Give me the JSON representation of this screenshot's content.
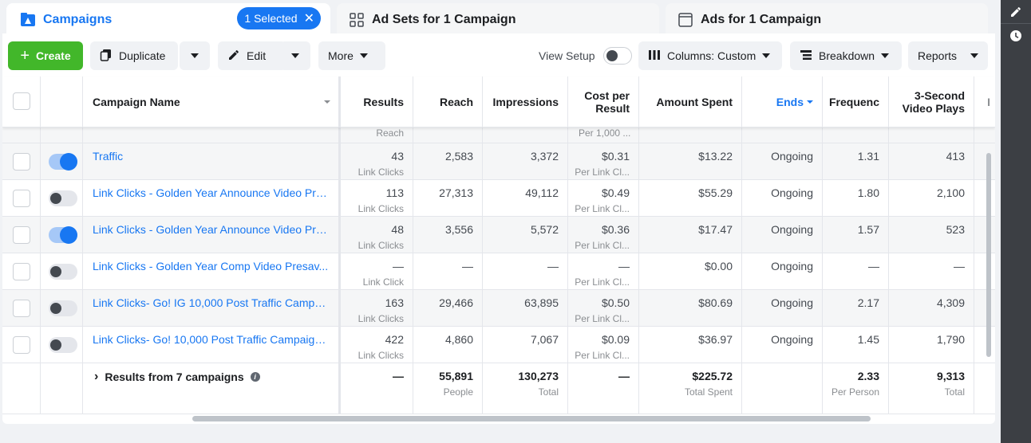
{
  "tabs": {
    "campaigns": "Campaigns",
    "selected_pill": "1 Selected",
    "ad_sets": "Ad Sets for 1 Campaign",
    "ads": "Ads for 1 Campaign"
  },
  "toolbar": {
    "create": "Create",
    "duplicate": "Duplicate",
    "edit": "Edit",
    "more": "More",
    "view_setup": "View Setup",
    "columns": "Columns: Custom",
    "breakdown": "Breakdown",
    "reports": "Reports"
  },
  "headers": {
    "name": "Campaign Name",
    "results": "Results",
    "reach": "Reach",
    "impressions": "Impressions",
    "cost_per_result_1": "Cost per",
    "cost_per_result_2": "Result",
    "amount_spent": "Amount Spent",
    "ends": "Ends",
    "frequency": "Frequenc",
    "video_1": "3-Second",
    "video_2": "Video Plays",
    "more": "I"
  },
  "partial_row": {
    "results_sub": "Reach",
    "cpr_sub": "Per 1,000 ..."
  },
  "rows": [
    {
      "name": "Traffic",
      "on": true,
      "results": "43",
      "results_sub": "Link Clicks",
      "reach": "2,583",
      "impressions": "3,372",
      "cpr": "$0.31",
      "cpr_sub": "Per Link Cl...",
      "amount": "$13.22",
      "ends": "Ongoing",
      "freq": "1.31",
      "video": "413"
    },
    {
      "name": "Link Clicks - Golden Year Announce Video Pre...",
      "on": false,
      "results": "113",
      "results_sub": "Link Clicks",
      "reach": "27,313",
      "impressions": "49,112",
      "cpr": "$0.49",
      "cpr_sub": "Per Link Cl...",
      "amount": "$55.29",
      "ends": "Ongoing",
      "freq": "1.80",
      "video": "2,100"
    },
    {
      "name": "Link Clicks - Golden Year Announce Video Pre...",
      "on": true,
      "results": "48",
      "results_sub": "Link Clicks",
      "reach": "3,556",
      "impressions": "5,572",
      "cpr": "$0.36",
      "cpr_sub": "Per Link Cl...",
      "amount": "$17.47",
      "ends": "Ongoing",
      "freq": "1.57",
      "video": "523"
    },
    {
      "name": "Link Clicks - Golden Year Comp Video Presav...",
      "on": false,
      "results": "—",
      "results_sub": "Link Click",
      "reach": "—",
      "impressions": "—",
      "cpr": "—",
      "cpr_sub": "Per Link Cl...",
      "amount": "$0.00",
      "ends": "Ongoing",
      "freq": "—",
      "video": "—"
    },
    {
      "name": "Link Clicks- Go! IG 10,000 Post Traffic Campa...",
      "on": false,
      "results": "163",
      "results_sub": "Link Clicks",
      "reach": "29,466",
      "impressions": "63,895",
      "cpr": "$0.50",
      "cpr_sub": "Per Link Cl...",
      "amount": "$80.69",
      "ends": "Ongoing",
      "freq": "2.17",
      "video": "4,309"
    },
    {
      "name": "Link Clicks- Go! 10,000 Post Traffic Campaign...",
      "on": false,
      "results": "422",
      "results_sub": "Link Clicks",
      "reach": "4,860",
      "impressions": "7,067",
      "cpr": "$0.09",
      "cpr_sub": "Per Link Cl...",
      "amount": "$36.97",
      "ends": "Ongoing",
      "freq": "1.45",
      "video": "1,790"
    }
  ],
  "totals": {
    "label": "Results from 7 campaigns",
    "results": "—",
    "reach": "55,891",
    "reach_sub": "People",
    "impressions": "130,273",
    "impressions_sub": "Total",
    "cpr": "—",
    "amount": "$225.72",
    "amount_sub": "Total Spent",
    "freq": "2.33",
    "freq_sub": "Per Person",
    "video": "9,313",
    "video_sub": "Total"
  },
  "colors": {
    "accent": "#1877f2",
    "create": "#42b72a"
  }
}
